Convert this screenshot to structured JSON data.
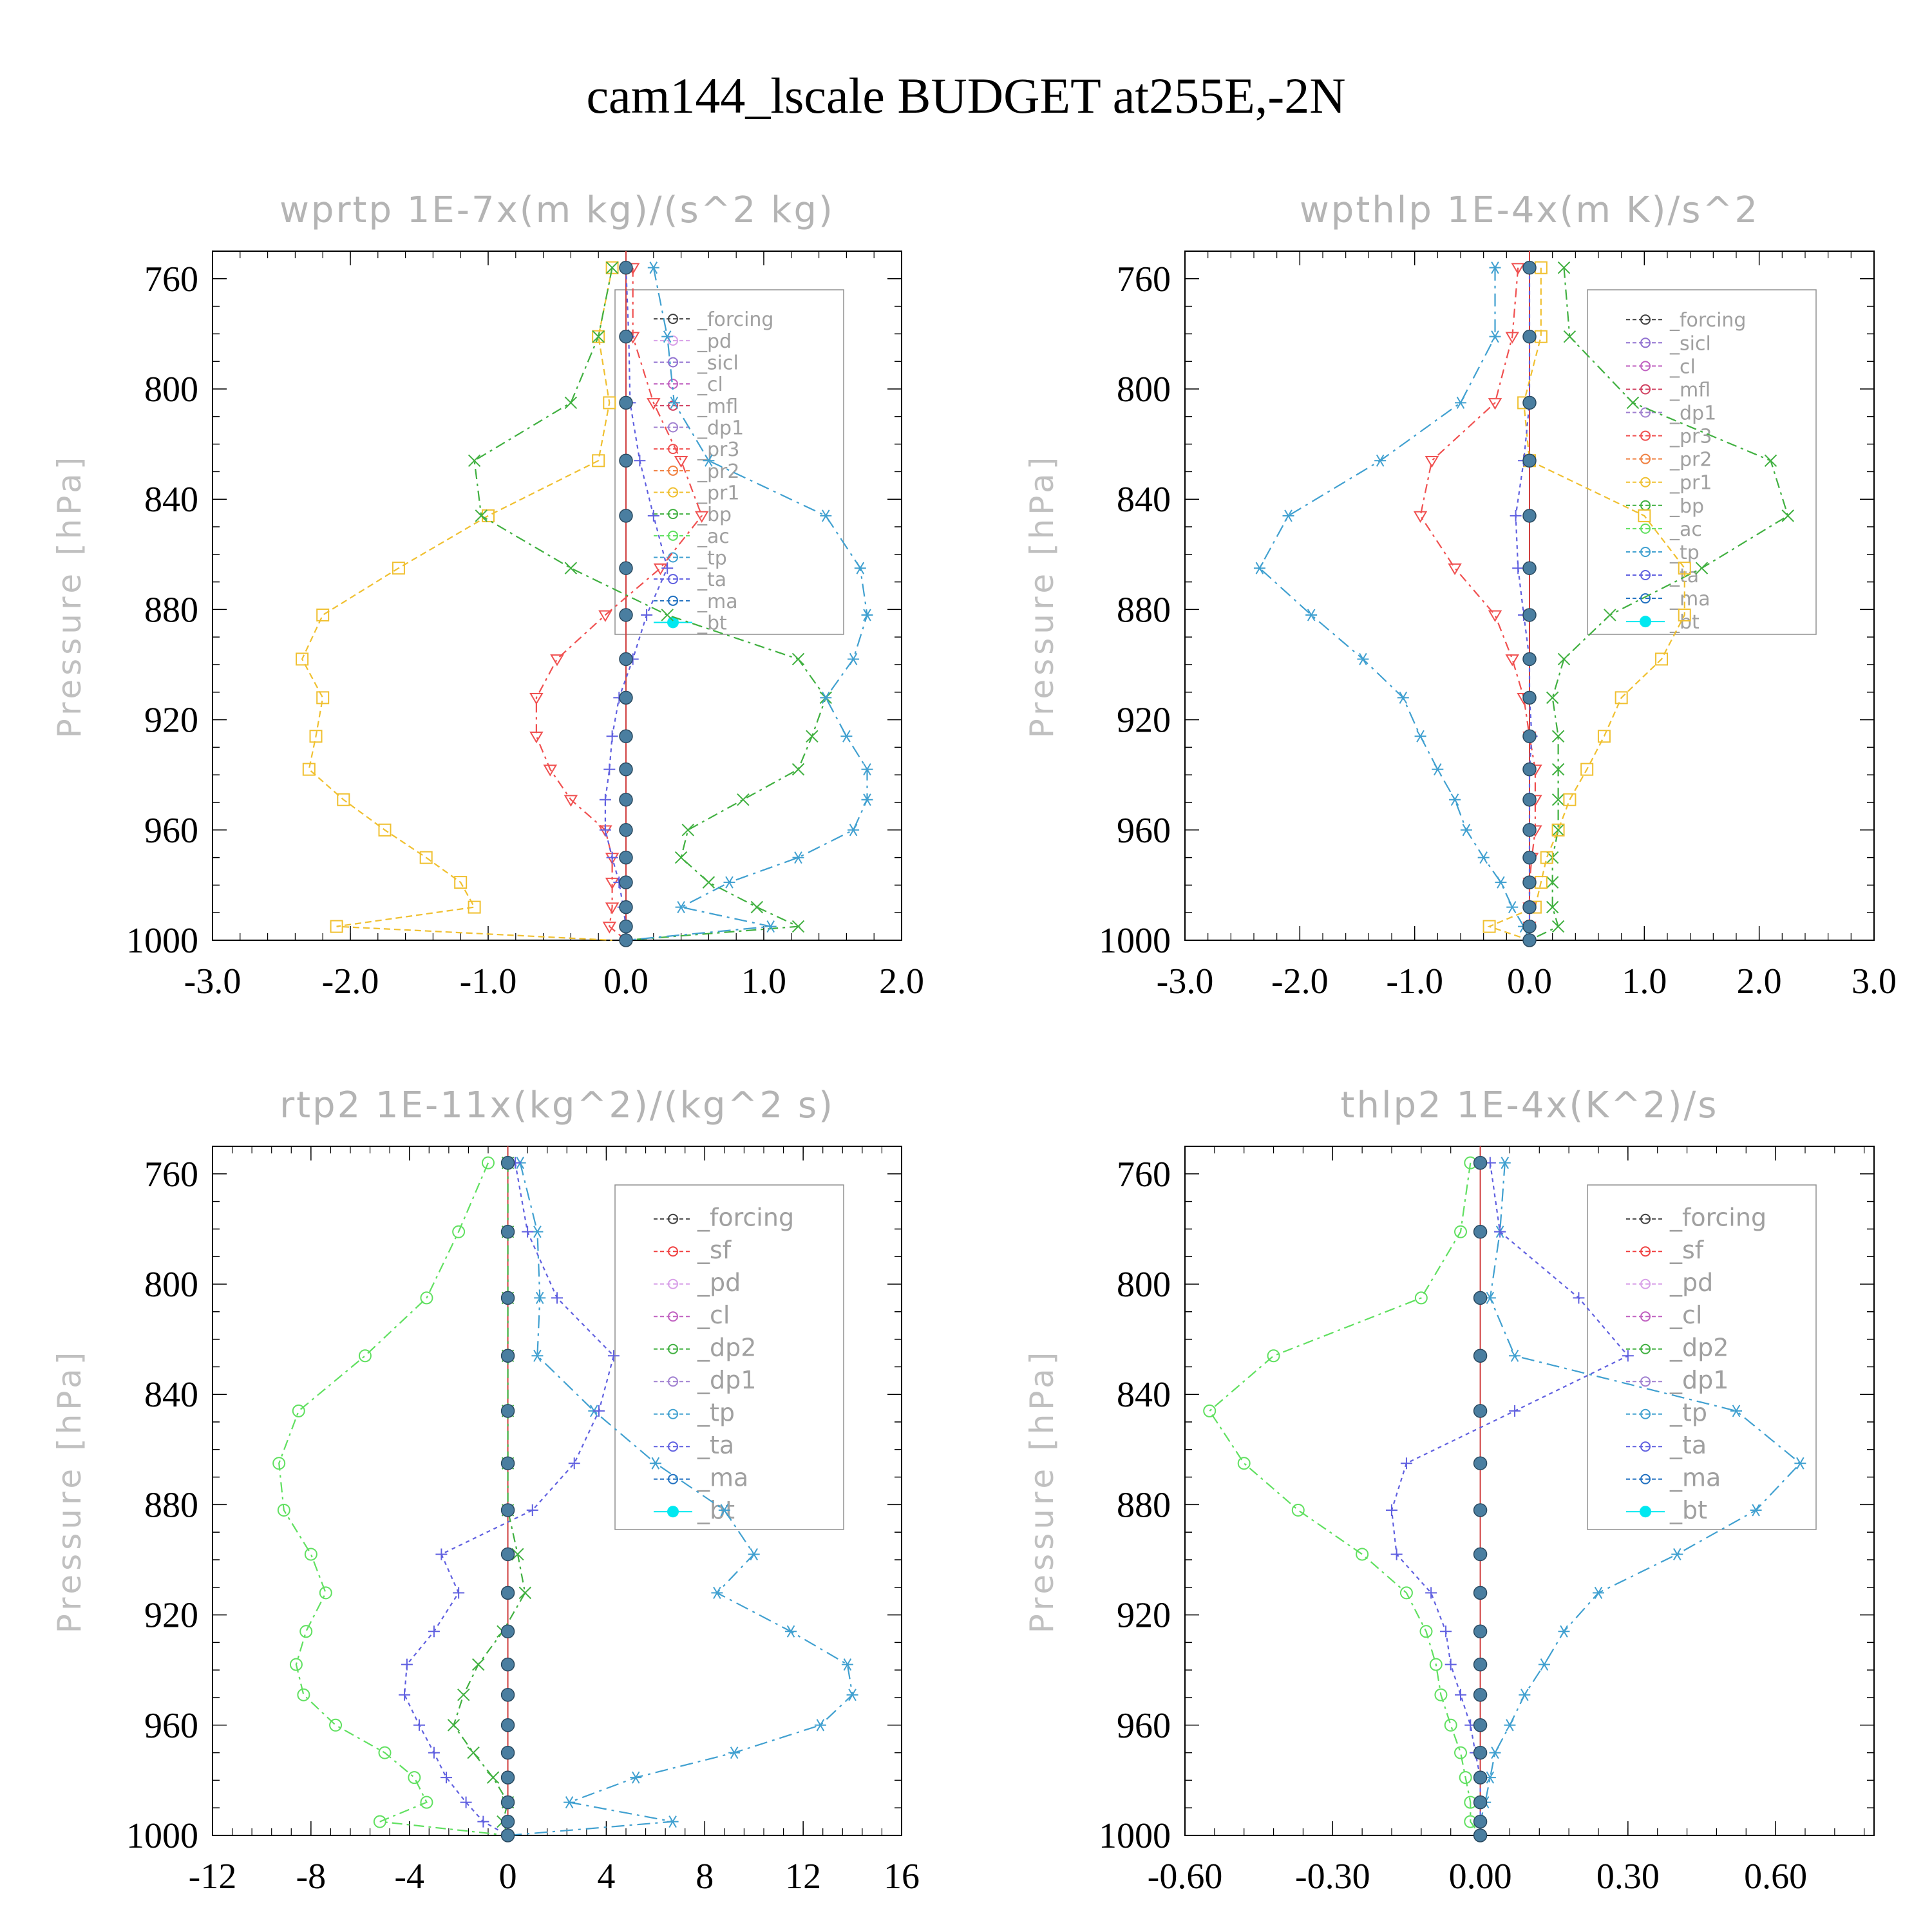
{
  "title": "cam144_lscale  BUDGET at255E,-2N",
  "colors": {
    "forcing": "#404040",
    "pd": "#d8a0e8",
    "sicl": "#9070d0",
    "cl": "#c060c0",
    "mfl": "#d04060",
    "dp1": "#a080d0",
    "pr3": "#f05050",
    "pr2": "#f08040",
    "pr1": "#f0c030",
    "bp": "#40b040",
    "ac": "#60e060",
    "tp": "#40a0d0",
    "ta": "#6060e0",
    "ma": "#2070c0",
    "bt": "#00e8f0",
    "sf": "#f04040",
    "dp2": "#40b040"
  },
  "chart_data": [
    {
      "type": "line",
      "title": "wprtp   1E-7x(m kg)/(s^2 kg)",
      "ylabel": "Pressure [hPa]",
      "yticks": [
        760,
        800,
        840,
        880,
        920,
        960,
        1000
      ],
      "xticks": [
        "-3.0",
        "-2.0",
        "-1.0",
        "0.0",
        "1.0",
        "2.0"
      ],
      "xlim": [
        -3.0,
        2.0
      ],
      "ylim": [
        750,
        1000
      ],
      "legend_entries": [
        "_forcing",
        "_pd",
        "_sicl",
        "_cl",
        "_mfl",
        "_dp1",
        "_pr3",
        "_pr2",
        "_pr1",
        "_bp",
        "_ac",
        "_tp",
        "_ta",
        "_ma",
        "_bt"
      ],
      "p": [
        756,
        781,
        805,
        826,
        846,
        865,
        882,
        898,
        912,
        926,
        938,
        949,
        960,
        970,
        979,
        988,
        995,
        1000
      ],
      "series": [
        {
          "key": "pr1",
          "marker": "square",
          "values": [
            -0.1,
            -0.2,
            -0.12,
            -0.2,
            -1.0,
            -1.65,
            -2.2,
            -2.35,
            -2.2,
            -2.25,
            -2.3,
            -2.05,
            -1.75,
            -1.45,
            -1.2,
            -1.1,
            -2.1,
            -0.1
          ]
        },
        {
          "key": "bp",
          "marker": "x",
          "values": [
            -0.1,
            -0.2,
            -0.4,
            -1.1,
            -1.05,
            -0.4,
            0.3,
            1.25,
            1.45,
            1.35,
            1.25,
            0.85,
            0.45,
            0.4,
            0.6,
            0.95,
            1.25,
            0.0
          ]
        },
        {
          "key": "tp",
          "marker": "star",
          "values": [
            0.2,
            0.3,
            0.35,
            0.6,
            1.45,
            1.7,
            1.75,
            1.65,
            1.45,
            1.6,
            1.75,
            1.75,
            1.65,
            1.25,
            0.75,
            0.4,
            1.05,
            0.0
          ]
        },
        {
          "key": "pr3",
          "marker": "triangle-down",
          "values": [
            0.05,
            0.05,
            0.2,
            0.4,
            0.55,
            0.25,
            -0.15,
            -0.5,
            -0.65,
            -0.65,
            -0.55,
            -0.4,
            -0.15,
            -0.1,
            -0.1,
            -0.1,
            -0.12,
            0.0
          ]
        },
        {
          "key": "ta",
          "marker": "plus",
          "values": [
            0.0,
            0.02,
            0.03,
            0.1,
            0.2,
            0.3,
            0.15,
            0.05,
            -0.05,
            -0.1,
            -0.12,
            -0.15,
            -0.15,
            -0.1,
            -0.05,
            -0.02,
            0.0,
            0.0
          ]
        },
        {
          "key": "bt",
          "marker": "dot",
          "values": [
            0,
            0,
            0,
            0,
            0,
            0,
            0,
            0,
            0,
            0,
            0,
            0,
            0,
            0,
            0,
            0,
            0,
            0
          ]
        }
      ]
    },
    {
      "type": "line",
      "title": "wpthlp   1E-4x(m K)/s^2",
      "ylabel": "Pressure [hPa]",
      "yticks": [
        760,
        800,
        840,
        880,
        920,
        960,
        1000
      ],
      "xticks": [
        "-3.0",
        "-2.0",
        "-1.0",
        "0.0",
        "1.0",
        "2.0",
        "3.0"
      ],
      "xlim": [
        -3.0,
        3.0
      ],
      "ylim": [
        750,
        1000
      ],
      "legend_entries": [
        "_forcing",
        "_sicl",
        "_cl",
        "_mfl",
        "_dp1",
        "_pr3",
        "_pr2",
        "_pr1",
        "_bp",
        "_ac",
        "_tp",
        "_ta",
        "_ma",
        "_bt"
      ],
      "p": [
        756,
        781,
        805,
        826,
        846,
        865,
        882,
        898,
        912,
        926,
        938,
        949,
        960,
        970,
        979,
        988,
        995,
        1000
      ],
      "series": [
        {
          "key": "tp",
          "marker": "star",
          "values": [
            -0.3,
            -0.3,
            -0.6,
            -1.3,
            -2.1,
            -2.35,
            -1.9,
            -1.45,
            -1.1,
            -0.95,
            -0.8,
            -0.65,
            -0.55,
            -0.4,
            -0.25,
            -0.15,
            -0.05,
            0.0
          ]
        },
        {
          "key": "bp",
          "marker": "x",
          "values": [
            0.3,
            0.35,
            0.9,
            2.1,
            2.25,
            1.5,
            0.7,
            0.3,
            0.2,
            0.25,
            0.25,
            0.25,
            0.25,
            0.2,
            0.2,
            0.2,
            0.25,
            0.0
          ]
        },
        {
          "key": "pr1",
          "marker": "square",
          "values": [
            0.1,
            0.1,
            -0.05,
            0.0,
            1.0,
            1.35,
            1.35,
            1.15,
            0.8,
            0.65,
            0.5,
            0.35,
            0.25,
            0.15,
            0.1,
            0.05,
            -0.35,
            0.0
          ]
        },
        {
          "key": "pr3",
          "marker": "triangle-down",
          "values": [
            -0.1,
            -0.15,
            -0.3,
            -0.85,
            -0.95,
            -0.65,
            -0.3,
            -0.15,
            -0.05,
            0.0,
            0.05,
            0.05,
            0.05,
            0.02,
            0.0,
            0.0,
            0.0,
            0.0
          ]
        },
        {
          "key": "ta",
          "marker": "plus",
          "values": [
            0.0,
            0.0,
            0.0,
            -0.05,
            -0.12,
            -0.1,
            -0.05,
            0.0,
            0.0,
            0.02,
            0.0,
            0.0,
            0.0,
            0.0,
            0.0,
            0.0,
            0.0,
            0.0
          ]
        },
        {
          "key": "bt",
          "marker": "dot",
          "values": [
            0,
            0,
            0,
            0,
            0,
            0,
            0,
            0,
            0,
            0,
            0,
            0,
            0,
            0,
            0,
            0,
            0,
            0
          ]
        }
      ]
    },
    {
      "type": "line",
      "title": "rtp2   1E-11x(kg^2)/(kg^2 s)",
      "ylabel": "Pressure [hPa]",
      "yticks": [
        760,
        800,
        840,
        880,
        920,
        960,
        1000
      ],
      "xticks": [
        "-12",
        "-8",
        "-4",
        "0",
        "4",
        "8",
        "12",
        "16"
      ],
      "xlim": [
        -12,
        16
      ],
      "ylim": [
        750,
        1000
      ],
      "legend_entries": [
        "_forcing",
        "_sf",
        "_pd",
        "_cl",
        "_dp2",
        "_dp1",
        "_tp",
        "_ta",
        "_ma",
        "_bt"
      ],
      "p": [
        756,
        781,
        805,
        826,
        846,
        865,
        882,
        898,
        912,
        926,
        938,
        949,
        960,
        970,
        979,
        988,
        995,
        1000
      ],
      "series": [
        {
          "key": "ac",
          "marker": "circle",
          "values": [
            -0.8,
            -2.0,
            -3.3,
            -5.8,
            -8.5,
            -9.3,
            -9.1,
            -8.0,
            -7.4,
            -8.2,
            -8.6,
            -8.3,
            -7.0,
            -5.0,
            -3.8,
            -3.3,
            -5.2,
            0.0
          ]
        },
        {
          "key": "tp",
          "marker": "star",
          "values": [
            0.5,
            1.2,
            1.3,
            1.2,
            3.5,
            6.0,
            8.8,
            10.0,
            8.5,
            11.5,
            13.8,
            14.0,
            12.7,
            9.2,
            5.2,
            2.5,
            6.7,
            0.0
          ]
        },
        {
          "key": "ta",
          "marker": "plus",
          "values": [
            0.3,
            0.8,
            2.0,
            4.3,
            3.7,
            2.7,
            1.0,
            -2.7,
            -2.0,
            -3.0,
            -4.1,
            -4.2,
            -3.6,
            -3.0,
            -2.5,
            -1.7,
            -1.0,
            0.0
          ]
        },
        {
          "key": "dp2",
          "marker": "x",
          "values": [
            0,
            0,
            0,
            0,
            0,
            0,
            0,
            0.4,
            0.7,
            -0.2,
            -1.2,
            -1.8,
            -2.2,
            -1.4,
            -0.6,
            0.0,
            -0.2,
            0.0
          ]
        },
        {
          "key": "bt",
          "marker": "dot",
          "values": [
            0,
            0,
            0,
            0,
            0,
            0,
            0,
            0,
            0,
            0,
            0,
            0,
            0,
            0,
            0,
            0,
            0,
            0
          ]
        }
      ]
    },
    {
      "type": "line",
      "title": "thlp2   1E-4x(K^2)/s",
      "ylabel": "Pressure [hPa]",
      "yticks": [
        760,
        800,
        840,
        880,
        920,
        960,
        1000
      ],
      "xticks": [
        "-0.60",
        "-0.30",
        "0.00",
        "0.30",
        "0.60"
      ],
      "xlim": [
        -0.6,
        0.8
      ],
      "ylim": [
        750,
        1000
      ],
      "legend_entries": [
        "_forcing",
        "_sf",
        "_pd",
        "_cl",
        "_dp2",
        "_dp1",
        "_tp",
        "_ta",
        "_ma",
        "_bt"
      ],
      "p": [
        756,
        781,
        805,
        826,
        846,
        865,
        882,
        898,
        912,
        926,
        938,
        949,
        960,
        970,
        979,
        988,
        995,
        1000
      ],
      "series": [
        {
          "key": "ac",
          "marker": "circle",
          "values": [
            -0.02,
            -0.04,
            -0.12,
            -0.42,
            -0.55,
            -0.48,
            -0.37,
            -0.24,
            -0.15,
            -0.11,
            -0.09,
            -0.08,
            -0.06,
            -0.04,
            -0.03,
            -0.02,
            -0.02,
            0.0
          ]
        },
        {
          "key": "tp",
          "marker": "star",
          "values": [
            0.05,
            0.04,
            0.02,
            0.07,
            0.52,
            0.65,
            0.56,
            0.4,
            0.24,
            0.17,
            0.13,
            0.09,
            0.06,
            0.03,
            0.02,
            0.01,
            0.0,
            0.0
          ]
        },
        {
          "key": "ta",
          "marker": "plus",
          "values": [
            0.02,
            0.04,
            0.2,
            0.3,
            0.07,
            -0.15,
            -0.18,
            -0.17,
            -0.1,
            -0.07,
            -0.06,
            -0.04,
            -0.02,
            -0.01,
            0.0,
            0.0,
            0.0,
            0.0
          ]
        },
        {
          "key": "bt",
          "marker": "dot",
          "values": [
            0,
            0,
            0,
            0,
            0,
            0,
            0,
            0,
            0,
            0,
            0,
            0,
            0,
            0,
            0,
            0,
            0,
            0
          ]
        }
      ]
    }
  ]
}
